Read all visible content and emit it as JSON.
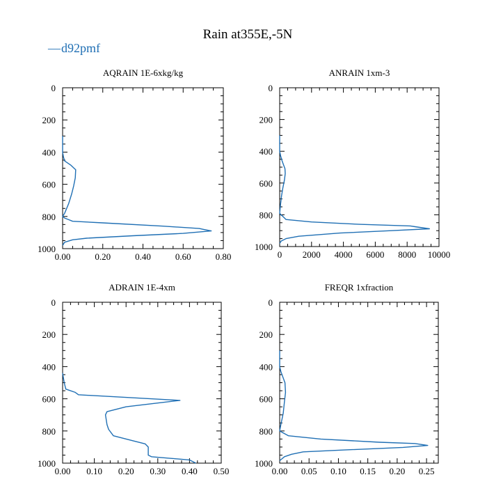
{
  "title": "Rain at355E,-5N",
  "legend": {
    "label": "d92pmf",
    "color": "#1f6fb4",
    "marker": "—"
  },
  "chart_data": [
    {
      "type": "line",
      "title": "AQRAIN  1E-6xkg/kg",
      "xlim": [
        0,
        0.8
      ],
      "ylim": [
        1000,
        0
      ],
      "x_ticks": [
        "0.00",
        "0.20",
        "0.40",
        "0.60",
        "0.80"
      ],
      "x_tick_values": [
        0,
        0.2,
        0.4,
        0.6,
        0.8
      ],
      "y_ticks": [
        "0",
        "200",
        "400",
        "600",
        "800",
        "1000"
      ],
      "y_tick_values": [
        0,
        200,
        400,
        600,
        800,
        1000
      ],
      "series": [
        {
          "name": "d92pmf",
          "points": [
            [
              0,
              300
            ],
            [
              0,
              400
            ],
            [
              0.004,
              430
            ],
            [
              0.01,
              455
            ],
            [
              0.04,
              480
            ],
            [
              0.065,
              510
            ],
            [
              0.063,
              560
            ],
            [
              0.055,
              610
            ],
            [
              0.045,
              660
            ],
            [
              0.03,
              720
            ],
            [
              0.01,
              780
            ],
            [
              0,
              800
            ],
            [
              0.01,
              810
            ],
            [
              0.03,
              820
            ],
            [
              0.05,
              830
            ],
            [
              0.2,
              840
            ],
            [
              0.5,
              860
            ],
            [
              0.68,
              875
            ],
            [
              0.7,
              880
            ],
            [
              0.74,
              890
            ],
            [
              0.6,
              905
            ],
            [
              0.35,
              920
            ],
            [
              0.12,
              935
            ],
            [
              0.05,
              945
            ],
            [
              0.01,
              960
            ],
            [
              0,
              980
            ]
          ]
        }
      ]
    },
    {
      "type": "line",
      "title": "ANRAIN  1xm-3",
      "xlim": [
        0,
        10000
      ],
      "ylim": [
        1000,
        0
      ],
      "x_ticks": [
        "0",
        "2000",
        "4000",
        "6000",
        "8000",
        "10000"
      ],
      "x_tick_values": [
        0,
        2000,
        4000,
        6000,
        8000,
        10000
      ],
      "y_ticks": [
        "0",
        "200",
        "400",
        "600",
        "800",
        "1000"
      ],
      "y_tick_values": [
        0,
        200,
        400,
        600,
        800,
        1000
      ],
      "series": [
        {
          "name": "d92pmf",
          "points": [
            [
              0,
              300
            ],
            [
              0,
              400
            ],
            [
              60,
              430
            ],
            [
              150,
              460
            ],
            [
              330,
              510
            ],
            [
              350,
              540
            ],
            [
              300,
              580
            ],
            [
              200,
              630
            ],
            [
              120,
              680
            ],
            [
              50,
              740
            ],
            [
              0,
              790
            ],
            [
              80,
              800
            ],
            [
              200,
              810
            ],
            [
              400,
              830
            ],
            [
              2000,
              845
            ],
            [
              5000,
              860
            ],
            [
              8200,
              870
            ],
            [
              8500,
              875
            ],
            [
              9400,
              888
            ],
            [
              7000,
              900
            ],
            [
              3800,
              915
            ],
            [
              1200,
              935
            ],
            [
              400,
              950
            ],
            [
              100,
              965
            ],
            [
              0,
              980
            ]
          ]
        }
      ]
    },
    {
      "type": "line",
      "title": "ADRAIN  1E-4xm",
      "xlim": [
        0,
        0.5
      ],
      "ylim": [
        1000,
        0
      ],
      "x_ticks": [
        "0.00",
        "0.10",
        "0.20",
        "0.30",
        "0.40",
        "0.50"
      ],
      "x_tick_values": [
        0,
        0.1,
        0.2,
        0.3,
        0.4,
        0.5
      ],
      "y_ticks": [
        "0",
        "200",
        "400",
        "600",
        "800",
        "1000"
      ],
      "y_tick_values": [
        0,
        200,
        400,
        600,
        800,
        1000
      ],
      "series": [
        {
          "name": "d92pmf",
          "points": [
            [
              0,
              440
            ],
            [
              0.005,
              500
            ],
            [
              0.01,
              540
            ],
            [
              0.04,
              560
            ],
            [
              0.05,
              575
            ],
            [
              0.37,
              610
            ],
            [
              0.2,
              650
            ],
            [
              0.14,
              680
            ],
            [
              0.135,
              700
            ],
            [
              0.14,
              760
            ],
            [
              0.145,
              790
            ],
            [
              0.16,
              830
            ],
            [
              0.22,
              860
            ],
            [
              0.26,
              880
            ],
            [
              0.27,
              900
            ],
            [
              0.27,
              950
            ],
            [
              0.28,
              960
            ],
            [
              0.4,
              980
            ],
            [
              0.42,
              1000
            ]
          ]
        }
      ]
    },
    {
      "type": "line",
      "title": "FREQR  1xfraction",
      "xlim": [
        0,
        0.27
      ],
      "ylim": [
        1000,
        0
      ],
      "x_ticks": [
        "0.00",
        "0.05",
        "0.10",
        "0.15",
        "0.20",
        "0.25"
      ],
      "x_tick_values": [
        0,
        0.05,
        0.1,
        0.15,
        0.2,
        0.25
      ],
      "y_ticks": [
        "0",
        "200",
        "400",
        "600",
        "800",
        "1000"
      ],
      "y_tick_values": [
        0,
        200,
        400,
        600,
        800,
        1000
      ],
      "series": [
        {
          "name": "d92pmf",
          "points": [
            [
              0,
              300
            ],
            [
              0,
              400
            ],
            [
              0.002,
              430
            ],
            [
              0.005,
              460
            ],
            [
              0.009,
              500
            ],
            [
              0.01,
              560
            ],
            [
              0.008,
              620
            ],
            [
              0.006,
              690
            ],
            [
              0.002,
              760
            ],
            [
              0,
              800
            ],
            [
              0.005,
              810
            ],
            [
              0.015,
              830
            ],
            [
              0.07,
              850
            ],
            [
              0.17,
              870
            ],
            [
              0.23,
              878
            ],
            [
              0.252,
              890
            ],
            [
              0.21,
              902
            ],
            [
              0.11,
              918
            ],
            [
              0.04,
              930
            ],
            [
              0.02,
              945
            ],
            [
              0.008,
              960
            ],
            [
              0,
              985
            ]
          ]
        }
      ]
    }
  ]
}
